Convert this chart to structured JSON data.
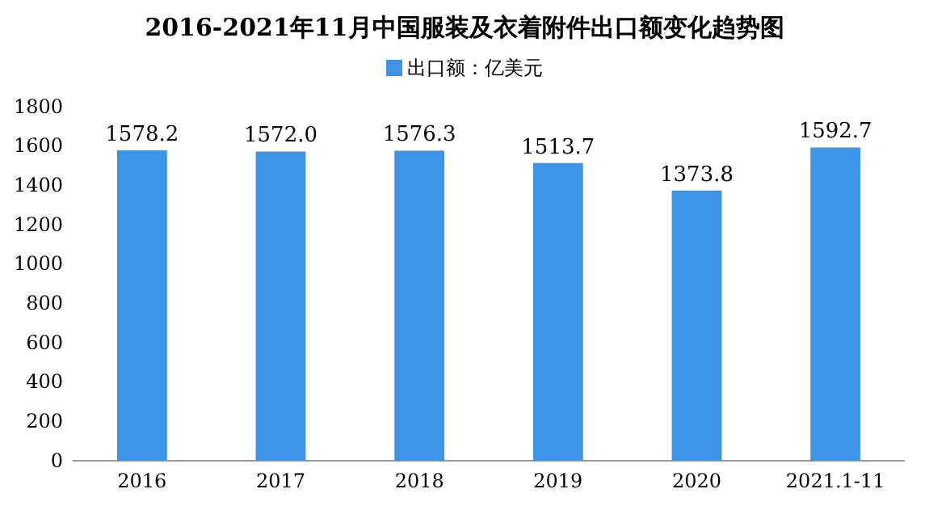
{
  "chart_data": {
    "type": "bar",
    "title": "2016-2021年11月中国服装及衣着附件出口额变化趋势图",
    "categories": [
      "2016",
      "2017",
      "2018",
      "2019",
      "2020",
      "2021.1-11"
    ],
    "series": [
      {
        "name": "出口额：亿美元",
        "color": "#3d94e6",
        "values": [
          1578.2,
          1572.0,
          1576.3,
          1513.7,
          1373.8,
          1592.7
        ]
      }
    ],
    "value_labels": [
      "1578.2",
      "1572.0",
      "1576.3",
      "1513.7",
      "1373.8",
      "1592.7"
    ],
    "ylim": [
      0,
      1800
    ],
    "yticks": [
      0,
      200,
      400,
      600,
      800,
      1000,
      1200,
      1400,
      1600,
      1800
    ],
    "legend": "top",
    "grid": false
  }
}
